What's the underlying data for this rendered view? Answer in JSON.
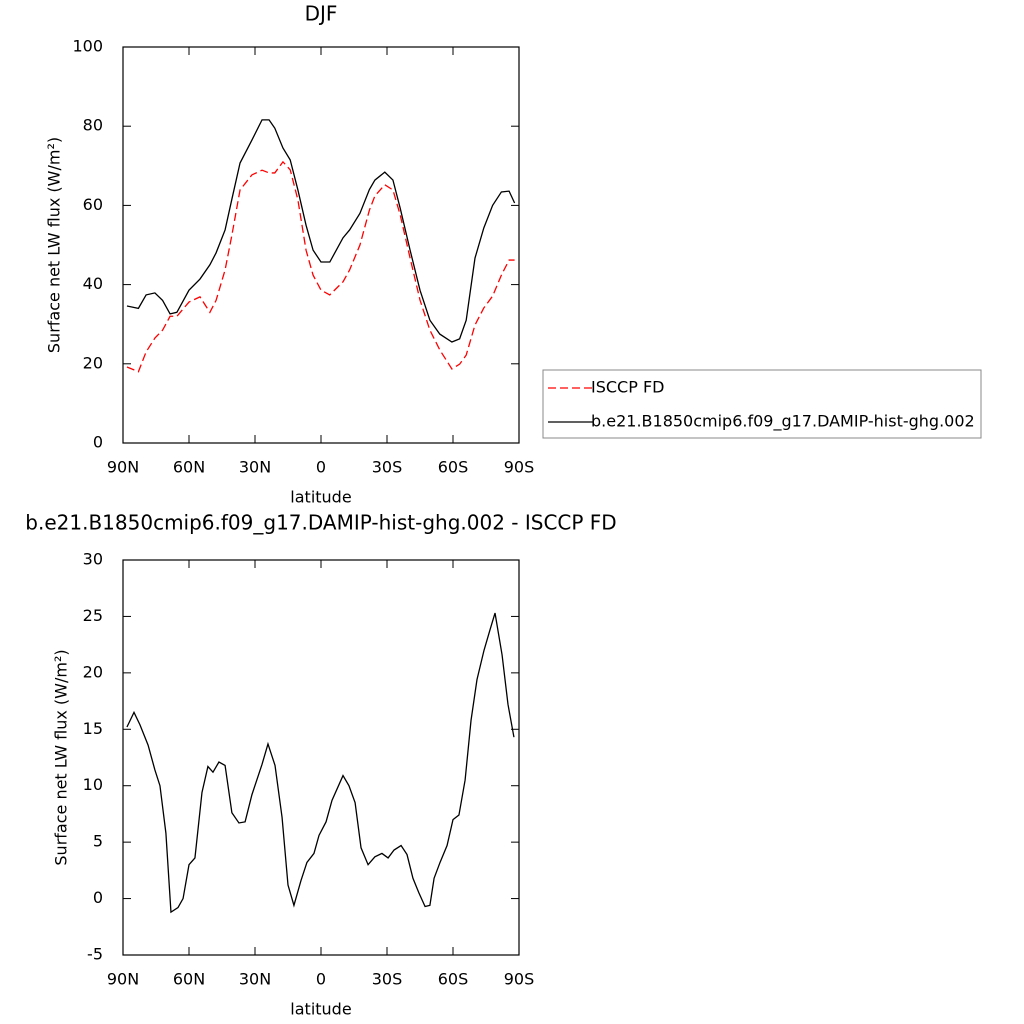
{
  "chart_data": [
    {
      "type": "line",
      "title": "DJF",
      "x_label": "latitude",
      "y_label": "Surface net LW flux (W/m²)",
      "x": [
        88.2,
        83,
        79.5,
        75.5,
        72,
        68.6,
        65.5,
        60,
        55,
        50.5,
        47.7,
        43.6,
        40.5,
        36.8,
        31.4,
        26.8,
        23.6,
        21,
        17.3,
        14,
        10.5,
        6.8,
        3.6,
        0,
        -4,
        -10,
        -13,
        -17.7,
        -22,
        -24.5,
        -29,
        -32.7,
        -36,
        -40.5,
        -45,
        -49.5,
        -54,
        -59.5,
        -63,
        -66,
        -70,
        -74,
        -78,
        -82,
        -85.5,
        -88
      ],
      "series": [
        {
          "name": "ISCCP FD",
          "color": "#ff0000",
          "dashed": true,
          "values": [
            19.2,
            18,
            23,
            26.5,
            28.5,
            32,
            32,
            35.6,
            36.9,
            33,
            36,
            43.7,
            52.5,
            63.9,
            67.7,
            68.9,
            68.2,
            68.2,
            71,
            69,
            61.4,
            48.7,
            42.4,
            38.6,
            37.4,
            40.7,
            43.7,
            50,
            58.8,
            62.4,
            65.2,
            63.9,
            57.6,
            46.7,
            36.1,
            28.5,
            23.5,
            18.7,
            19.9,
            22.2,
            29.8,
            34.1,
            37.1,
            42.4,
            46.2,
            46.2
          ]
        },
        {
          "name": "b.e21.B1850cmip6.f09_g17.DAMIP-hist-ghg.002",
          "color": "#000000",
          "dashed": false,
          "values": [
            34.6,
            34,
            37.4,
            37.9,
            36,
            32.6,
            33,
            38.6,
            41.4,
            45,
            48,
            53.8,
            61.6,
            70.7,
            76.5,
            81.6,
            81.6,
            79.5,
            74.5,
            71.5,
            63.9,
            55,
            48.7,
            45.7,
            45.7,
            51.8,
            53.8,
            58,
            64,
            66.4,
            68.4,
            66.4,
            59.3,
            48.7,
            38.6,
            31,
            27.5,
            25.5,
            26.3,
            31,
            46.7,
            54.3,
            60,
            63.4,
            63.6,
            60.6
          ]
        }
      ],
      "xlim": [
        90,
        -90
      ],
      "xticks": [
        {
          "value": 90,
          "label": "90N"
        },
        {
          "value": 60,
          "label": "60N"
        },
        {
          "value": 30,
          "label": "30N"
        },
        0,
        {
          "value": -30,
          "label": "30S"
        },
        {
          "value": -60,
          "label": "60S"
        },
        {
          "value": -90,
          "label": "90S"
        }
      ],
      "ylim": [
        0,
        100
      ],
      "yticks": [
        0,
        20,
        40,
        60,
        80,
        100
      ],
      "legend": "right"
    },
    {
      "type": "line",
      "title": "b.e21.B1850cmip6.f09_g17.DAMIP-hist-ghg.002 - ISCCP FD",
      "x_label": "latitude",
      "y_label": "Surface net LW flux (W/m²)",
      "x": [
        88.2,
        85,
        82.3,
        78.6,
        75.5,
        73.2,
        70.5,
        68.2,
        65,
        62.7,
        60,
        57.3,
        54.1,
        51.4,
        49.1,
        46.4,
        43.6,
        40.5,
        37.3,
        34.5,
        31.4,
        26.8,
        24.1,
        20.9,
        17.7,
        15,
        12.3,
        9.1,
        6.4,
        3.2,
        0.9,
        -2.3,
        -5,
        -10,
        -12.7,
        -15.5,
        -18.2,
        -21.4,
        -24.5,
        -27.7,
        -30.5,
        -33.2,
        -36.4,
        -39.1,
        -41.8,
        -44.5,
        -47.3,
        -49.5,
        -51.4,
        -54.1,
        -57.3,
        -60,
        -62.7,
        -65.5,
        -68.2,
        -70.9,
        -74.1,
        -76.8,
        -79.1,
        -82.3,
        -85,
        -87.7
      ],
      "color": "#000000",
      "values": [
        15.2,
        16.5,
        15.4,
        13.6,
        11.4,
        10,
        5.8,
        -1.2,
        -0.8,
        0,
        3,
        3.6,
        9.4,
        11.7,
        11.2,
        12.1,
        11.8,
        7.6,
        6.7,
        6.8,
        9.2,
        11.9,
        13.7,
        11.8,
        7.2,
        1.2,
        -0.6,
        1.6,
        3.2,
        4,
        5.6,
        6.8,
        8.7,
        10.9,
        10,
        8.5,
        4.5,
        3,
        3.7,
        4,
        3.6,
        4.3,
        4.7,
        3.9,
        1.8,
        0.5,
        -0.7,
        -0.6,
        1.8,
        3.2,
        4.7,
        7,
        7.4,
        10.5,
        15.8,
        19.4,
        22,
        23.8,
        25.3,
        21.6,
        17.2,
        14.3
      ],
      "xlim": [
        90,
        -90
      ],
      "xticks": [
        {
          "value": 90,
          "label": "90N"
        },
        {
          "value": 60,
          "label": "60N"
        },
        {
          "value": 30,
          "label": "30N"
        },
        0,
        {
          "value": -30,
          "label": "30S"
        },
        {
          "value": -60,
          "label": "60S"
        },
        {
          "value": -90,
          "label": "90S"
        }
      ],
      "ylim": [
        -5,
        30
      ],
      "yticks": [
        -5,
        0,
        5,
        10,
        15,
        20,
        25,
        30
      ]
    }
  ]
}
